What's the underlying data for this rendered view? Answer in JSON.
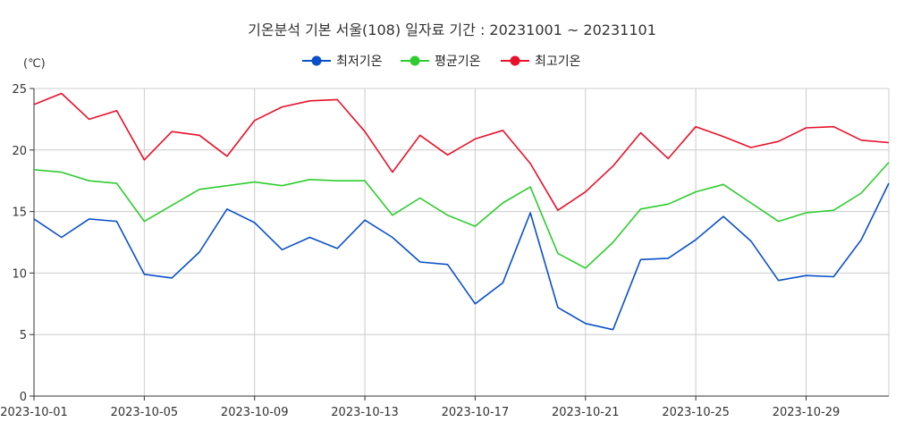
{
  "chart_data": {
    "type": "line",
    "title": "기온분석 기본 서울(108) 일자료 기간 : 20231001 ~ 20231101",
    "ylabel": "(℃)",
    "xlabel": "",
    "ylim": [
      0,
      25
    ],
    "yticks": [
      "0",
      "5",
      "10",
      "15",
      "20",
      "25"
    ],
    "grid": true,
    "legend_position": "top-center",
    "x": [
      "2023-10-01",
      "2023-10-02",
      "2023-10-03",
      "2023-10-04",
      "2023-10-05",
      "2023-10-06",
      "2023-10-07",
      "2023-10-08",
      "2023-10-09",
      "2023-10-10",
      "2023-10-11",
      "2023-10-12",
      "2023-10-13",
      "2023-10-14",
      "2023-10-15",
      "2023-10-16",
      "2023-10-17",
      "2023-10-18",
      "2023-10-19",
      "2023-10-20",
      "2023-10-21",
      "2023-10-22",
      "2023-10-23",
      "2023-10-24",
      "2023-10-25",
      "2023-10-26",
      "2023-10-27",
      "2023-10-28",
      "2023-10-29",
      "2023-10-30",
      "2023-10-31",
      "2023-11-01"
    ],
    "xticks": [
      "2023-10-01",
      "2023-10-05",
      "2023-10-09",
      "2023-10-13",
      "2023-10-17",
      "2023-10-21",
      "2023-10-25",
      "2023-10-29"
    ],
    "series": [
      {
        "name": "최저기온",
        "color": "#0a50c8",
        "values": [
          14.4,
          12.9,
          14.4,
          14.2,
          9.9,
          9.6,
          11.7,
          15.2,
          14.1,
          11.9,
          12.9,
          12.0,
          14.3,
          12.9,
          10.9,
          10.7,
          7.5,
          9.2,
          14.9,
          7.2,
          5.9,
          5.4,
          11.1,
          11.2,
          12.7,
          14.6,
          12.6,
          9.4,
          9.8,
          9.7,
          12.7,
          17.3
        ]
      },
      {
        "name": "평균기온",
        "color": "#2ecc2e",
        "values": [
          18.4,
          18.2,
          17.5,
          17.3,
          14.2,
          15.5,
          16.8,
          17.1,
          17.4,
          17.1,
          17.6,
          17.5,
          17.5,
          14.7,
          16.1,
          14.7,
          13.8,
          15.7,
          17.0,
          11.6,
          10.4,
          12.5,
          15.2,
          15.6,
          16.6,
          17.2,
          15.7,
          14.2,
          14.9,
          15.1,
          16.5,
          19.0
        ]
      },
      {
        "name": "최고기온",
        "color": "#e8102a",
        "values": [
          23.7,
          24.6,
          22.5,
          23.2,
          19.2,
          21.5,
          21.2,
          19.5,
          22.4,
          23.5,
          24.0,
          24.1,
          21.5,
          18.2,
          21.2,
          19.6,
          20.9,
          21.6,
          18.9,
          15.1,
          16.6,
          18.7,
          21.4,
          19.3,
          21.9,
          21.1,
          20.2,
          20.7,
          21.8,
          21.9,
          20.8,
          20.6
        ]
      }
    ]
  }
}
